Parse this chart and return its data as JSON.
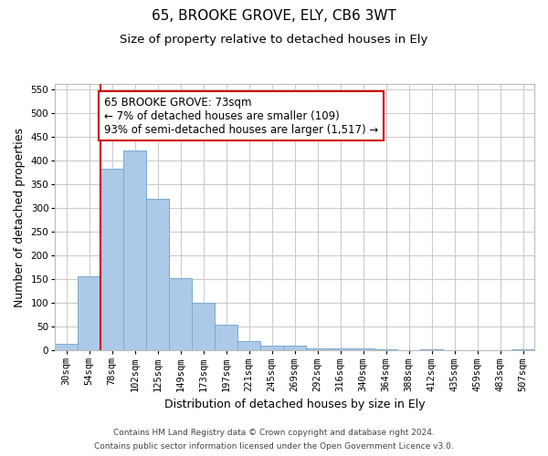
{
  "title": "65, BROOKE GROVE, ELY, CB6 3WT",
  "subtitle": "Size of property relative to detached houses in Ely",
  "xlabel": "Distribution of detached houses by size in Ely",
  "ylabel": "Number of detached properties",
  "footnote1": "Contains HM Land Registry data © Crown copyright and database right 2024.",
  "footnote2": "Contains public sector information licensed under the Open Government Licence v3.0.",
  "categories": [
    "30sqm",
    "54sqm",
    "78sqm",
    "102sqm",
    "125sqm",
    "149sqm",
    "173sqm",
    "197sqm",
    "221sqm",
    "245sqm",
    "269sqm",
    "292sqm",
    "316sqm",
    "340sqm",
    "364sqm",
    "388sqm",
    "412sqm",
    "435sqm",
    "459sqm",
    "483sqm",
    "507sqm"
  ],
  "values": [
    13,
    155,
    382,
    420,
    320,
    153,
    100,
    55,
    20,
    10,
    10,
    4,
    4,
    4,
    3,
    1,
    3,
    1,
    1,
    1,
    3
  ],
  "bar_color": "#adc9e8",
  "bar_edge_color": "#7aaad0",
  "vline_x": 1.5,
  "vline_color": "#cc0000",
  "annotation_text": "65 BROOKE GROVE: 73sqm\n← 7% of detached houses are smaller (109)\n93% of semi-detached houses are larger (1,517) →",
  "annotation_box_color": "#ffffff",
  "annotation_box_edge_color": "#cc0000",
  "ylim": [
    0,
    560
  ],
  "yticks": [
    0,
    50,
    100,
    150,
    200,
    250,
    300,
    350,
    400,
    450,
    500,
    550
  ],
  "background_color": "#ffffff",
  "grid_color": "#cccccc",
  "title_fontsize": 11,
  "subtitle_fontsize": 9.5,
  "axis_label_fontsize": 9,
  "tick_fontsize": 7.5,
  "annotation_fontsize": 8.5
}
